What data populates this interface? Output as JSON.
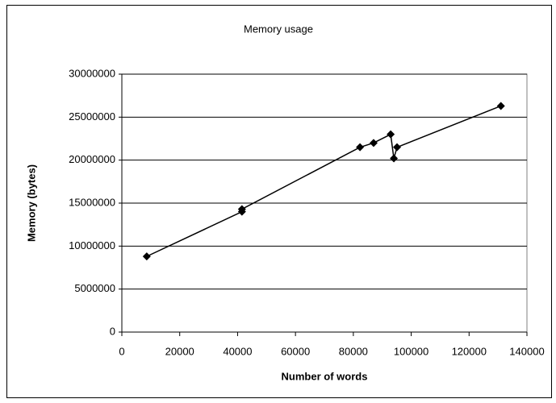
{
  "chart_data": {
    "type": "line",
    "title": "Memory usage",
    "x_label": "Number of words",
    "y_label": "Memory (bytes)",
    "series": [
      {
        "name": "Memory",
        "color": "#000000",
        "x": [
          8600,
          41500,
          41500,
          82300,
          87000,
          92900,
          94000,
          95100,
          131000
        ],
        "values": [
          8800000,
          14000000,
          14300000,
          21500000,
          22000000,
          23000000,
          20200000,
          21500000,
          26300000
        ]
      }
    ],
    "xlim": [
      0,
      140000
    ],
    "xticks": [
      0,
      20000,
      40000,
      60000,
      80000,
      100000,
      120000,
      140000
    ],
    "ylim": [
      0,
      30000000
    ],
    "yticks": [
      0,
      5000000,
      10000000,
      15000000,
      20000000,
      25000000,
      30000000
    ],
    "grid": true,
    "marker": "diamond"
  }
}
